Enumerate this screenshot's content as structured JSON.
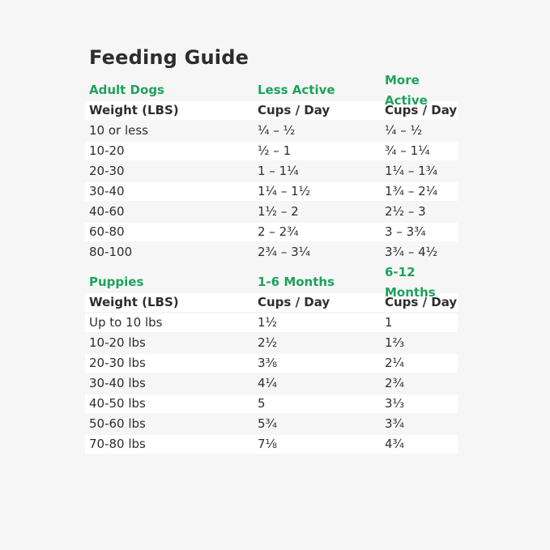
{
  "page": {
    "title": "Feeding Guide"
  },
  "colors": {
    "background": "#F6F6F6",
    "row_white": "#FFFFFF",
    "accent_green": "#1EA25C",
    "text": "#2E2E2E"
  },
  "tables": [
    {
      "id": "adult-dogs",
      "section_label": "Adult Dogs",
      "col2_label": "Less Active",
      "col3_label": "More Active",
      "header": {
        "col1": "Weight (LBS)",
        "col2": "Cups / Day",
        "col3": "Cups / Day"
      },
      "zebra_start": "gray",
      "rows": [
        {
          "col1": "10 or less",
          "col2": "¼ – ½",
          "col3": "¼ – ½"
        },
        {
          "col1": "10-20",
          "col2": "½ – 1",
          "col3": "¾ – 1¼"
        },
        {
          "col1": "20-30",
          "col2": "1 – 1¼",
          "col3": "1¼ – 1¾"
        },
        {
          "col1": "30-40",
          "col2": "1¼ – 1½",
          "col3": "1¾ – 2¼"
        },
        {
          "col1": "40-60",
          "col2": "1½ – 2",
          "col3": "2½ – 3"
        },
        {
          "col1": "60-80",
          "col2": "2 – 2¾",
          "col3": "3 – 3¾"
        },
        {
          "col1": "80-100",
          "col2": "2¾ – 3¼",
          "col3": "3¾ – 4½"
        }
      ]
    },
    {
      "id": "puppies",
      "section_label": "Puppies",
      "col2_label": "1-6 Months",
      "col3_label": "6-12 Months",
      "header": {
        "col1": "Weight (LBS)",
        "col2": "Cups / Day",
        "col3": "Cups / Day"
      },
      "zebra_start": "white",
      "rows": [
        {
          "col1": "Up to 10 lbs",
          "col2": "1½",
          "col3": "1"
        },
        {
          "col1": "10-20 lbs",
          "col2": "2½",
          "col3": "1⅔"
        },
        {
          "col1": "20-30 lbs",
          "col2": "3⅜",
          "col3": "2¼"
        },
        {
          "col1": "30-40 lbs",
          "col2": "4¼",
          "col3": "2¾"
        },
        {
          "col1": "40-50 lbs",
          "col2": "5",
          "col3": "3⅓"
        },
        {
          "col1": "50-60 lbs",
          "col2": "5¾",
          "col3": "3¾"
        },
        {
          "col1": "70-80 lbs",
          "col2": "7⅛",
          "col3": "4¾"
        }
      ]
    }
  ]
}
